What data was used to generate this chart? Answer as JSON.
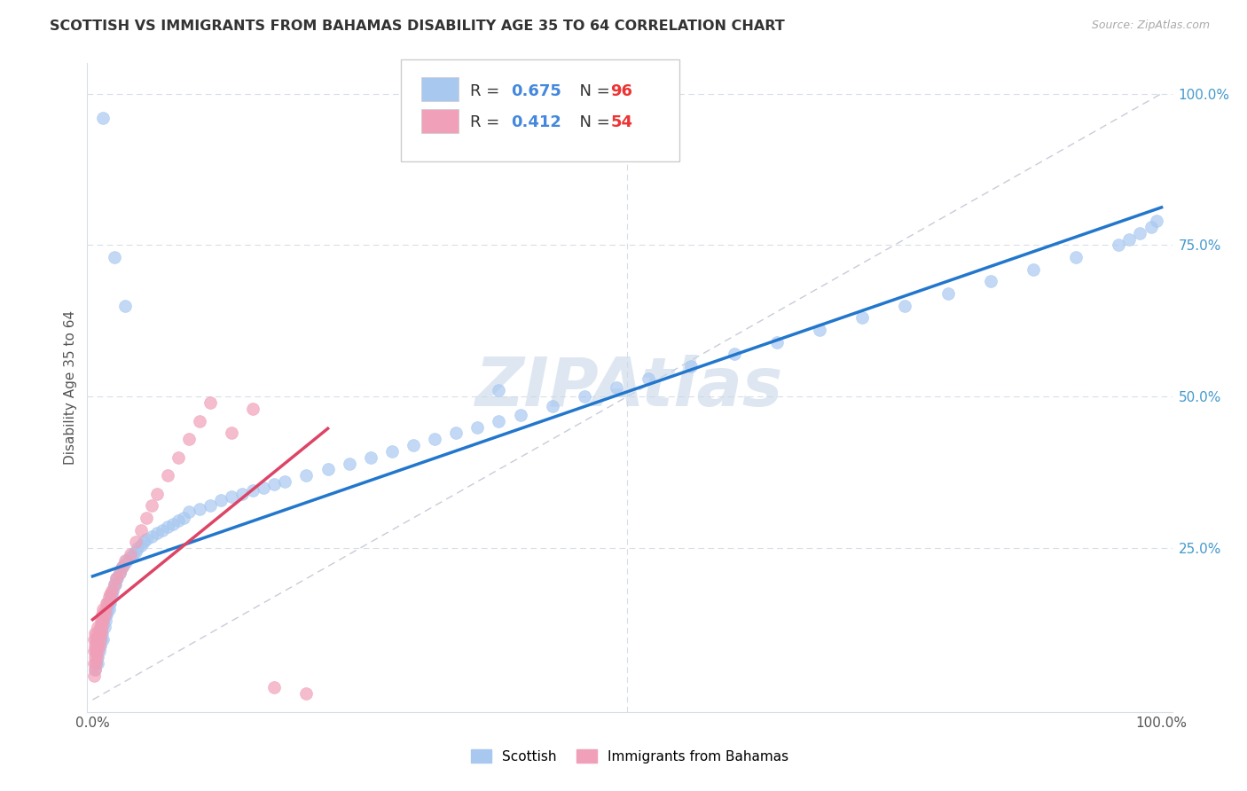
{
  "title": "SCOTTISH VS IMMIGRANTS FROM BAHAMAS DISABILITY AGE 35 TO 64 CORRELATION CHART",
  "source": "Source: ZipAtlas.com",
  "ylabel": "Disability Age 35 to 64",
  "blue_R": "0.675",
  "blue_N": "96",
  "pink_R": "0.412",
  "pink_N": "54",
  "blue_line_color": "#2277cc",
  "pink_line_color": "#dd4466",
  "blue_dot_color": "#a8c8f0",
  "pink_dot_color": "#f0a0b8",
  "grid_color": "#d8dde8",
  "ref_line_color": "#c8ccd8",
  "watermark_color": "#c8d8e8",
  "background_color": "#ffffff",
  "blue_x": [
    0.002,
    0.003,
    0.003,
    0.004,
    0.004,
    0.005,
    0.005,
    0.005,
    0.006,
    0.006,
    0.007,
    0.007,
    0.008,
    0.008,
    0.009,
    0.009,
    0.01,
    0.01,
    0.011,
    0.012,
    0.012,
    0.013,
    0.014,
    0.015,
    0.015,
    0.016,
    0.017,
    0.018,
    0.019,
    0.02,
    0.021,
    0.022,
    0.023,
    0.025,
    0.026,
    0.028,
    0.03,
    0.032,
    0.035,
    0.038,
    0.04,
    0.042,
    0.045,
    0.048,
    0.05,
    0.055,
    0.06,
    0.065,
    0.07,
    0.075,
    0.08,
    0.085,
    0.09,
    0.1,
    0.11,
    0.12,
    0.13,
    0.14,
    0.15,
    0.16,
    0.17,
    0.18,
    0.2,
    0.22,
    0.24,
    0.26,
    0.28,
    0.3,
    0.32,
    0.34,
    0.36,
    0.38,
    0.4,
    0.43,
    0.46,
    0.49,
    0.52,
    0.56,
    0.6,
    0.64,
    0.68,
    0.72,
    0.76,
    0.8,
    0.84,
    0.88,
    0.92,
    0.96,
    0.97,
    0.98,
    0.99,
    0.995,
    0.38,
    0.01,
    0.02,
    0.03
  ],
  "blue_y": [
    0.05,
    0.06,
    0.08,
    0.09,
    0.1,
    0.06,
    0.07,
    0.09,
    0.08,
    0.1,
    0.09,
    0.11,
    0.1,
    0.12,
    0.11,
    0.13,
    0.1,
    0.13,
    0.12,
    0.13,
    0.14,
    0.14,
    0.15,
    0.15,
    0.16,
    0.16,
    0.17,
    0.175,
    0.18,
    0.19,
    0.19,
    0.2,
    0.2,
    0.21,
    0.215,
    0.22,
    0.225,
    0.23,
    0.235,
    0.24,
    0.245,
    0.25,
    0.255,
    0.26,
    0.265,
    0.27,
    0.275,
    0.28,
    0.285,
    0.29,
    0.295,
    0.3,
    0.31,
    0.315,
    0.32,
    0.33,
    0.335,
    0.34,
    0.345,
    0.35,
    0.355,
    0.36,
    0.37,
    0.38,
    0.39,
    0.4,
    0.41,
    0.42,
    0.43,
    0.44,
    0.45,
    0.46,
    0.47,
    0.485,
    0.5,
    0.515,
    0.53,
    0.55,
    0.57,
    0.59,
    0.61,
    0.63,
    0.65,
    0.67,
    0.69,
    0.71,
    0.73,
    0.75,
    0.76,
    0.77,
    0.78,
    0.79,
    0.51,
    0.96,
    0.73,
    0.65
  ],
  "pink_x": [
    0.001,
    0.001,
    0.001,
    0.001,
    0.002,
    0.002,
    0.002,
    0.002,
    0.003,
    0.003,
    0.003,
    0.004,
    0.004,
    0.004,
    0.005,
    0.005,
    0.005,
    0.006,
    0.006,
    0.007,
    0.007,
    0.008,
    0.008,
    0.009,
    0.009,
    0.01,
    0.01,
    0.011,
    0.012,
    0.013,
    0.014,
    0.015,
    0.016,
    0.018,
    0.02,
    0.022,
    0.025,
    0.028,
    0.03,
    0.035,
    0.04,
    0.045,
    0.05,
    0.055,
    0.06,
    0.07,
    0.08,
    0.09,
    0.1,
    0.11,
    0.13,
    0.15,
    0.17,
    0.2
  ],
  "pink_y": [
    0.04,
    0.06,
    0.08,
    0.1,
    0.05,
    0.07,
    0.09,
    0.11,
    0.06,
    0.08,
    0.1,
    0.07,
    0.09,
    0.11,
    0.08,
    0.1,
    0.12,
    0.09,
    0.11,
    0.1,
    0.12,
    0.11,
    0.13,
    0.12,
    0.14,
    0.13,
    0.15,
    0.14,
    0.15,
    0.16,
    0.16,
    0.17,
    0.175,
    0.18,
    0.19,
    0.2,
    0.21,
    0.22,
    0.23,
    0.24,
    0.26,
    0.28,
    0.3,
    0.32,
    0.34,
    0.37,
    0.4,
    0.43,
    0.46,
    0.49,
    0.44,
    0.48,
    0.02,
    0.01
  ]
}
